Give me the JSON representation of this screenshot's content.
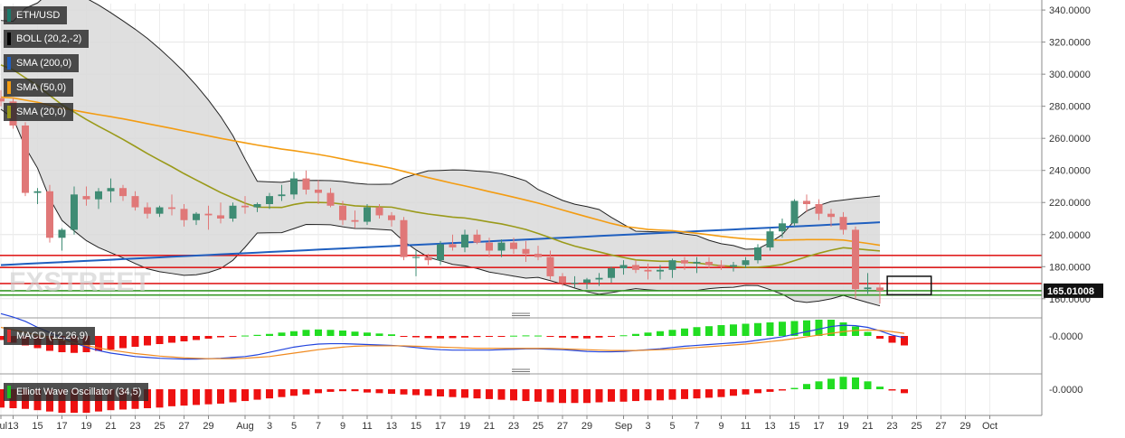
{
  "chart_data": {
    "type": "candlestick",
    "symbol": "ETH/USD",
    "indicators": {
      "boll": {
        "label": "BOLL (20,2,-2)",
        "color": "#000000"
      },
      "sma200": {
        "label": "SMA (200,0)",
        "color": "#1f5fbf"
      },
      "sma50": {
        "label": "SMA (50,0)",
        "color": "#f39c12"
      },
      "sma20": {
        "label": "SMA (20,0)",
        "color": "#9a9a1a"
      }
    },
    "watermark": "FXSTREET",
    "current_price_label": "165.01008",
    "y_axis": {
      "ylim": [
        152,
        344
      ],
      "ticks": [
        "340.0000",
        "320.0000",
        "300.0000",
        "280.0000",
        "260.0000",
        "240.0000",
        "220.0000",
        "200.0000",
        "180.0000",
        "160.0000"
      ]
    },
    "x_axis": {
      "ticks": [
        {
          "label": "Jul",
          "i": 0
        },
        {
          "label": "13",
          "i": 1
        },
        {
          "label": "15",
          "i": 3
        },
        {
          "label": "17",
          "i": 5
        },
        {
          "label": "19",
          "i": 7
        },
        {
          "label": "21",
          "i": 9
        },
        {
          "label": "23",
          "i": 11
        },
        {
          "label": "25",
          "i": 13
        },
        {
          "label": "27",
          "i": 15
        },
        {
          "label": "29",
          "i": 17
        },
        {
          "label": "Aug",
          "i": 20
        },
        {
          "label": "3",
          "i": 22
        },
        {
          "label": "5",
          "i": 24
        },
        {
          "label": "7",
          "i": 26
        },
        {
          "label": "9",
          "i": 28
        },
        {
          "label": "11",
          "i": 30
        },
        {
          "label": "13",
          "i": 32
        },
        {
          "label": "15",
          "i": 34
        },
        {
          "label": "17",
          "i": 36
        },
        {
          "label": "19",
          "i": 38
        },
        {
          "label": "21",
          "i": 40
        },
        {
          "label": "23",
          "i": 42
        },
        {
          "label": "25",
          "i": 44
        },
        {
          "label": "27",
          "i": 46
        },
        {
          "label": "29",
          "i": 48
        },
        {
          "label": "Sep",
          "i": 51
        },
        {
          "label": "3",
          "i": 53
        },
        {
          "label": "5",
          "i": 55
        },
        {
          "label": "7",
          "i": 57
        },
        {
          "label": "9",
          "i": 59
        },
        {
          "label": "11",
          "i": 61
        },
        {
          "label": "13",
          "i": 63
        },
        {
          "label": "15",
          "i": 65
        },
        {
          "label": "17",
          "i": 67
        },
        {
          "label": "19",
          "i": 69
        },
        {
          "label": "21",
          "i": 71
        },
        {
          "label": "23",
          "i": 73
        },
        {
          "label": "25",
          "i": 75
        },
        {
          "label": "27",
          "i": 77
        },
        {
          "label": "29",
          "i": 79
        },
        {
          "label": "Oct",
          "i": 81
        }
      ]
    },
    "candles": [
      [
        285,
        290,
        280,
        283
      ],
      [
        283,
        285,
        266,
        268
      ],
      [
        268,
        270,
        224,
        226
      ],
      [
        226,
        229,
        219,
        227
      ],
      [
        227,
        231,
        195,
        198
      ],
      [
        198,
        204,
        190,
        203
      ],
      [
        203,
        230,
        200,
        225
      ],
      [
        224,
        230,
        218,
        222
      ],
      [
        222,
        229,
        216,
        227
      ],
      [
        227,
        235,
        220,
        229
      ],
      [
        229,
        231,
        221,
        224
      ],
      [
        224,
        227,
        215,
        217
      ],
      [
        217,
        220,
        210,
        213
      ],
      [
        213,
        218,
        211,
        217
      ],
      [
        217,
        225,
        212,
        216
      ],
      [
        216,
        219,
        205,
        209
      ],
      [
        209,
        214,
        206,
        213
      ],
      [
        213,
        218,
        203,
        212
      ],
      [
        212,
        220,
        207,
        210
      ],
      [
        210,
        220,
        208,
        218
      ],
      [
        218,
        224,
        213,
        217
      ],
      [
        217,
        220,
        214,
        219
      ],
      [
        219,
        226,
        216,
        224
      ],
      [
        224,
        231,
        221,
        225
      ],
      [
        225,
        239,
        222,
        235
      ],
      [
        235,
        240,
        225,
        228
      ],
      [
        228,
        234,
        219,
        226
      ],
      [
        226,
        229,
        217,
        218
      ],
      [
        218,
        221,
        206,
        209
      ],
      [
        209,
        215,
        204,
        208
      ],
      [
        208,
        219,
        206,
        217
      ],
      [
        217,
        219,
        210,
        212
      ],
      [
        212,
        214,
        205,
        209
      ],
      [
        209,
        211,
        184,
        186
      ],
      [
        186,
        190,
        174,
        186
      ],
      [
        186,
        188,
        181,
        184
      ],
      [
        184,
        196,
        181,
        194
      ],
      [
        194,
        200,
        190,
        192
      ],
      [
        192,
        203,
        189,
        200
      ],
      [
        200,
        203,
        194,
        195
      ],
      [
        195,
        198,
        186,
        190
      ],
      [
        190,
        197,
        186,
        195
      ],
      [
        195,
        198,
        188,
        191
      ],
      [
        191,
        196,
        183,
        188
      ],
      [
        188,
        193,
        184,
        186
      ],
      [
        186,
        190,
        172,
        174
      ],
      [
        174,
        176,
        168,
        170
      ],
      [
        170,
        174,
        167,
        170
      ],
      [
        170,
        173,
        166,
        172
      ],
      [
        172,
        176,
        168,
        173
      ],
      [
        173,
        180,
        170,
        179
      ],
      [
        179,
        184,
        175,
        181
      ],
      [
        181,
        184,
        176,
        178
      ],
      [
        178,
        182,
        172,
        177
      ],
      [
        177,
        181,
        172,
        178
      ],
      [
        178,
        185,
        173,
        184
      ],
      [
        184,
        186,
        178,
        182
      ],
      [
        182,
        186,
        176,
        183
      ],
      [
        183,
        186,
        179,
        181
      ],
      [
        181,
        184,
        178,
        180
      ],
      [
        180,
        183,
        177,
        181
      ],
      [
        181,
        186,
        179,
        184
      ],
      [
        184,
        194,
        182,
        192
      ],
      [
        192,
        204,
        190,
        202
      ],
      [
        202,
        210,
        198,
        207
      ],
      [
        207,
        222,
        205,
        221
      ],
      [
        221,
        225,
        214,
        219
      ],
      [
        219,
        222,
        209,
        213
      ],
      [
        213,
        216,
        205,
        211
      ],
      [
        211,
        214,
        200,
        203
      ],
      [
        203,
        205,
        160,
        166
      ],
      [
        166,
        176,
        163,
        167
      ],
      [
        167,
        170,
        157,
        165
      ]
    ],
    "horizontal_lines": [
      {
        "y": 187,
        "color": "#e02020"
      },
      {
        "y": 179.5,
        "color": "#e02020"
      },
      {
        "y": 169.5,
        "color": "#e02020"
      },
      {
        "y": 165,
        "color": "#3a9a2a"
      },
      {
        "y": 162.3,
        "color": "#3a9a2a"
      }
    ],
    "highlight_box": {
      "x0": 72.6,
      "x1": 76.2,
      "y0": 174,
      "y1": 162.5
    },
    "macd": {
      "label": "MACD (12,26,9)",
      "value_label": "-0.0000",
      "histogram": [
        -3,
        -5,
        -7,
        -9,
        -11,
        -12,
        -12.5,
        -12,
        -11,
        -10,
        -9,
        -8,
        -7,
        -6,
        -5,
        -4,
        -3,
        -2,
        -1,
        -0.5,
        0.3,
        0.8,
        1.5,
        2.5,
        3.5,
        4.5,
        4.8,
        4.5,
        4,
        3.2,
        2.5,
        1.8,
        1.2,
        -0.5,
        -1,
        -1.6,
        -1.8,
        -1.6,
        -1.2,
        -0.8,
        -0.5,
        -0.3,
        0.2,
        0.4,
        0.3,
        -0.4,
        -1.2,
        -1.6,
        -1.8,
        -1.2,
        -0.5,
        0.5,
        1.5,
        2.5,
        3.5,
        4.5,
        5.5,
        6.5,
        7.2,
        8,
        8.5,
        9,
        9.5,
        10,
        10.5,
        11,
        11.5,
        12,
        12,
        10,
        7,
        3,
        -2,
        -5,
        -7
      ],
      "macd_line": [
        26,
        22,
        17,
        10,
        4,
        -2,
        -8,
        -13,
        -17,
        -20,
        -22,
        -24,
        -25,
        -26,
        -26.5,
        -27,
        -27,
        -26.5,
        -26,
        -25,
        -24,
        -22,
        -19,
        -16,
        -13,
        -11,
        -9.5,
        -9,
        -9,
        -9.5,
        -10,
        -10.5,
        -11,
        -12,
        -13.5,
        -15,
        -16,
        -16.5,
        -16.5,
        -16.5,
        -16.5,
        -16,
        -15.5,
        -15,
        -15,
        -15.5,
        -16,
        -17,
        -18,
        -18.5,
        -18.5,
        -18,
        -17,
        -16,
        -15,
        -13.5,
        -12,
        -11,
        -10,
        -9,
        -8,
        -7,
        -5,
        -3,
        -1,
        2,
        5,
        8,
        11,
        12.5,
        12,
        10,
        6,
        1,
        -2
      ],
      "signal_line": [
        10,
        7,
        4,
        1,
        -2,
        -5,
        -8,
        -11,
        -14,
        -16.5,
        -18.5,
        -20.5,
        -22,
        -23.5,
        -24.5,
        -25.5,
        -26,
        -26.5,
        -26.5,
        -26.5,
        -26,
        -25,
        -24,
        -22,
        -20,
        -18,
        -16,
        -14.5,
        -13,
        -12,
        -11.5,
        -11.5,
        -11.5,
        -11.5,
        -12,
        -12.5,
        -13,
        -13.5,
        -14,
        -14.5,
        -14.5,
        -14.5,
        -14.5,
        -14.5,
        -14.5,
        -14.5,
        -15,
        -15.5,
        -16,
        -16.5,
        -17,
        -17,
        -17,
        -16.5,
        -16,
        -15.5,
        -14.5,
        -13.5,
        -12.5,
        -11.5,
        -10.5,
        -9.5,
        -8,
        -6.5,
        -5,
        -3,
        -1,
        1,
        3,
        5,
        6.5,
        7,
        6.5,
        5,
        3
      ]
    },
    "ewo": {
      "label": "Elliott Wave Oscillator (34,5)",
      "value_label": "-0.0000",
      "values": [
        -14,
        -14.5,
        -15,
        -16,
        -17,
        -18,
        -18,
        -18,
        -17,
        -16,
        -15.5,
        -15,
        -14.5,
        -14,
        -13,
        -12.5,
        -12,
        -11.5,
        -11,
        -10,
        -9,
        -8,
        -7,
        -6,
        -5,
        -4,
        -3,
        -2,
        -1.5,
        -1.5,
        -2.5,
        -3,
        -3.5,
        -4,
        -4.5,
        -5,
        -5.5,
        -6,
        -6.5,
        -7,
        -7.5,
        -8,
        -8.5,
        -9,
        -9.5,
        -10,
        -10.5,
        -10.5,
        -10.5,
        -10,
        -9.5,
        -9.5,
        -9,
        -8.5,
        -8.5,
        -8,
        -7.5,
        -7,
        -6.5,
        -6,
        -5,
        -4,
        -3,
        -2,
        -1,
        1,
        4,
        6,
        8,
        9.5,
        9,
        6,
        2,
        -1,
        -3
      ]
    }
  }
}
